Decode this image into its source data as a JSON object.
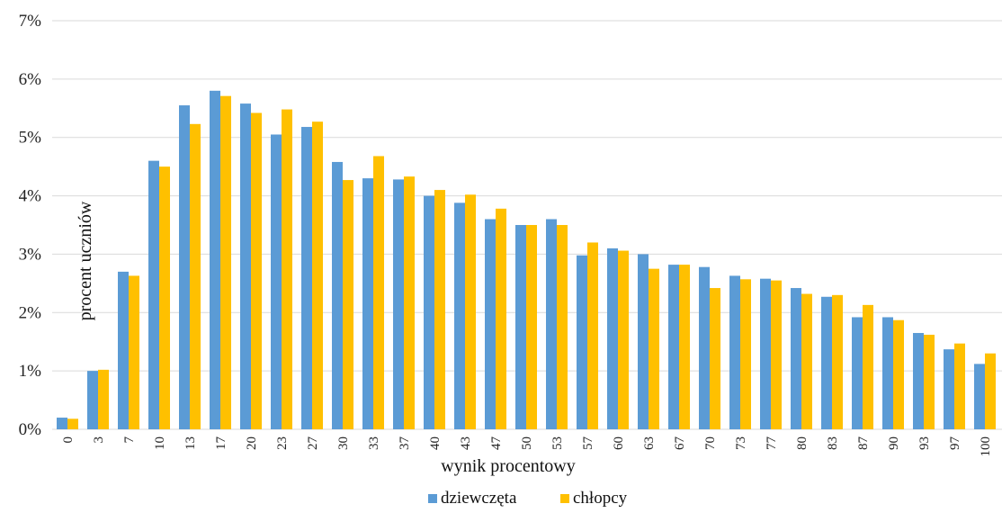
{
  "chart_data": {
    "type": "bar",
    "title": "",
    "xlabel": "wynik procentowy",
    "ylabel": "procent uczniów",
    "ylim": [
      0,
      7
    ],
    "y_ticks": [
      "0%",
      "1%",
      "2%",
      "3%",
      "4%",
      "5%",
      "6%",
      "7%"
    ],
    "grid": true,
    "legend_position": "bottom",
    "categories": [
      "0",
      "3",
      "7",
      "10",
      "13",
      "17",
      "20",
      "23",
      "27",
      "30",
      "33",
      "37",
      "40",
      "43",
      "47",
      "50",
      "53",
      "57",
      "60",
      "63",
      "67",
      "70",
      "73",
      "77",
      "80",
      "83",
      "87",
      "90",
      "93",
      "97",
      "100"
    ],
    "series": [
      {
        "name": "dziewczęta",
        "color": "#5b9bd5",
        "values": [
          0.2,
          1.0,
          2.7,
          4.6,
          5.55,
          5.8,
          5.58,
          5.05,
          5.18,
          4.58,
          4.3,
          4.28,
          4.0,
          3.88,
          3.6,
          3.5,
          3.6,
          2.98,
          3.1,
          3.0,
          2.82,
          2.78,
          2.63,
          2.58,
          2.42,
          2.27,
          1.92,
          1.92,
          1.65,
          1.37,
          1.12
        ]
      },
      {
        "name": "chłopcy",
        "color": "#ffc000",
        "values": [
          0.18,
          1.02,
          2.63,
          4.5,
          5.23,
          5.71,
          5.42,
          5.48,
          5.27,
          4.27,
          4.68,
          4.33,
          4.1,
          4.02,
          3.78,
          3.5,
          3.5,
          3.2,
          3.06,
          2.75,
          2.82,
          2.42,
          2.57,
          2.55,
          2.32,
          2.3,
          2.13,
          1.87,
          1.62,
          1.47,
          1.3
        ]
      }
    ]
  }
}
